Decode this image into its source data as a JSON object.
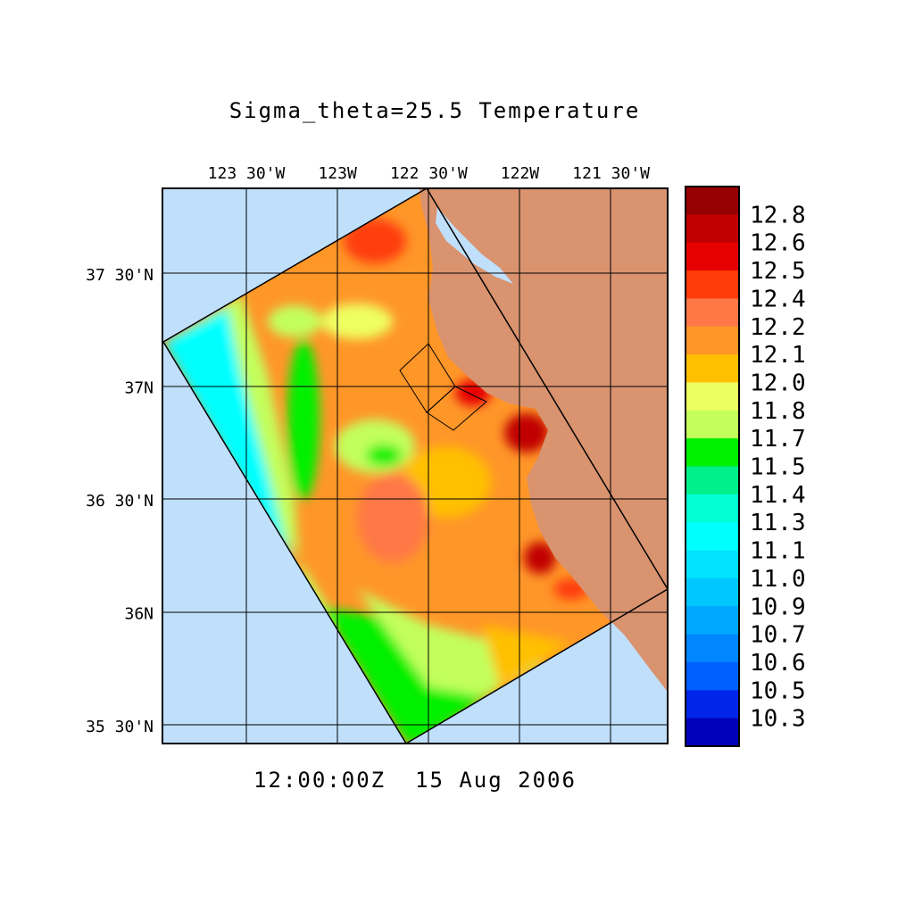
{
  "chart_data": {
    "type": "heatmap",
    "title": "Sigma_theta=25.5 Temperature",
    "time_label": "12:00:00Z  15 Aug 2006",
    "x_axis": {
      "ticks": [
        "123 30'W",
        "123W",
        "122 30'W",
        "122W",
        "121 30'W"
      ],
      "tick_values": [
        -123.5,
        -123.0,
        -122.5,
        -122.0,
        -121.5
      ],
      "range": [
        -123.96,
        -121.19
      ],
      "position": "top"
    },
    "y_axis": {
      "ticks": [
        "37 30'N",
        "37N",
        "36 30'N",
        "36N",
        "35 30'N"
      ],
      "tick_values": [
        37.5,
        37.0,
        36.5,
        36.0,
        35.5
      ],
      "range": [
        35.42,
        37.88
      ]
    },
    "grid": true,
    "colorbar": {
      "position": "right",
      "labels": [
        "12.8",
        "12.6",
        "12.5",
        "12.4",
        "12.2",
        "12.1",
        "12.0",
        "11.8",
        "11.7",
        "11.5",
        "11.4",
        "11.3",
        "11.1",
        "11.0",
        "10.9",
        "10.7",
        "10.6",
        "10.5",
        "10.3"
      ],
      "colors": [
        "#960000",
        "#c00000",
        "#e60000",
        "#ff3c0a",
        "#ff7846",
        "#ff9628",
        "#ffc000",
        "#eeff60",
        "#c2ff5c",
        "#00f000",
        "#00f08c",
        "#00ffd2",
        "#00ffff",
        "#00e2ff",
        "#00c8ff",
        "#00a8ff",
        "#0086ff",
        "#0060ff",
        "#0024e8",
        "#0000b8"
      ]
    },
    "land_color": "#d9936f",
    "ocean_color": "#c0dffb"
  }
}
